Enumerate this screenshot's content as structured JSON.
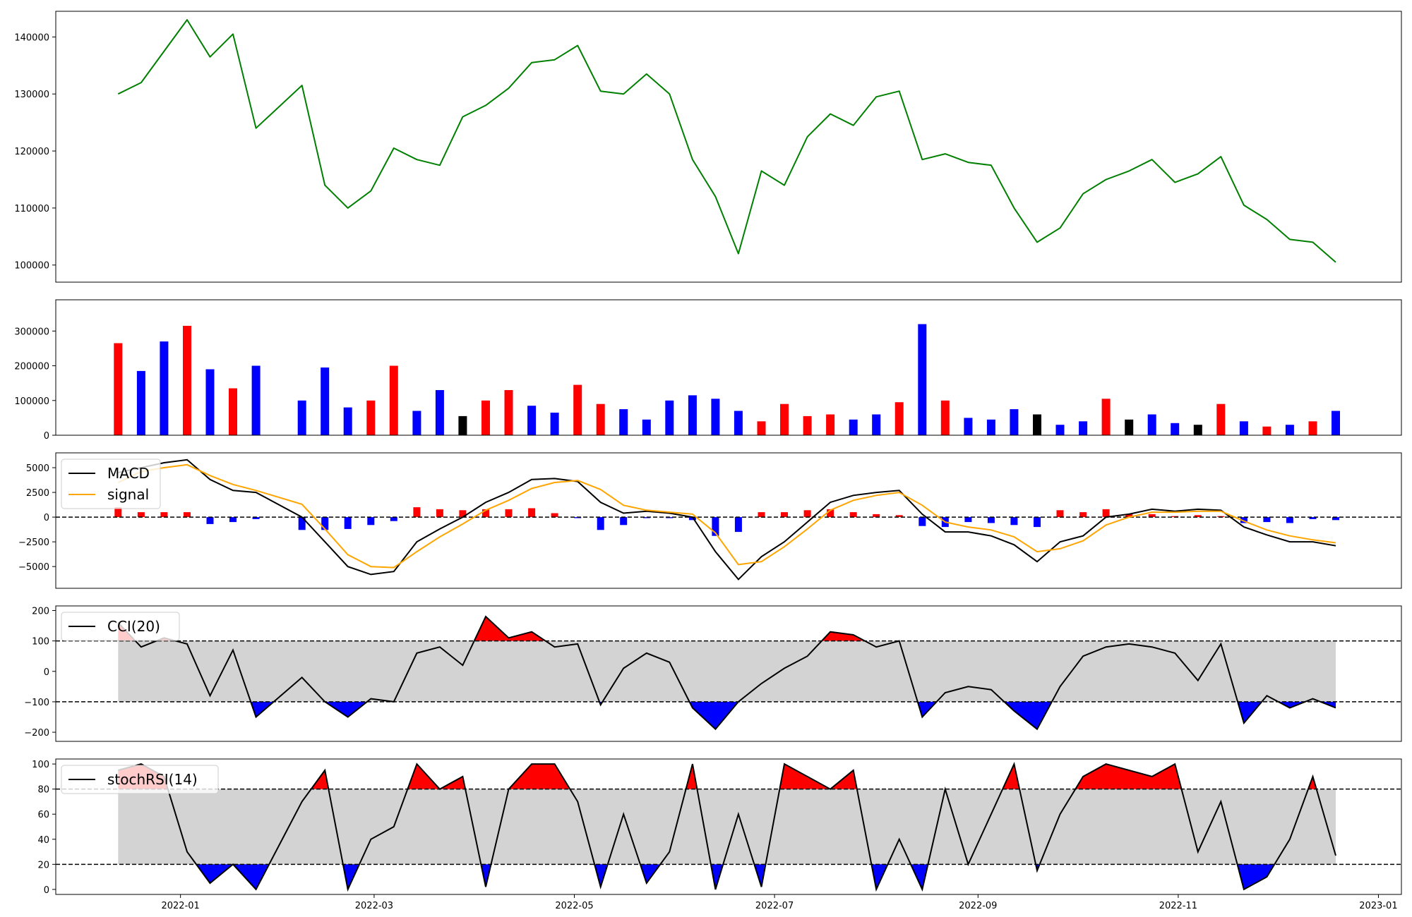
{
  "colors": {
    "price": "#008000",
    "up": "#ff0000",
    "down": "#0000ff",
    "flat": "#000000",
    "macd": "#000000",
    "signal": "#ffa500",
    "band": "#d3d3d3",
    "over": "#ff0000",
    "under": "#0000ff"
  },
  "chart_data": [
    {
      "type": "line",
      "panel": "price",
      "ylim": [
        97000,
        144500
      ],
      "yticks": [
        100000,
        110000,
        120000,
        130000,
        140000
      ],
      "ytick_labels": [
        "100000",
        "110000",
        "120000",
        "130000",
        "140000"
      ],
      "x": [
        "2021-12-13",
        "2021-12-20",
        "2021-12-27",
        "2022-01-03",
        "2022-01-10",
        "2022-01-17",
        "2022-01-24",
        "2022-02-07",
        "2022-02-14",
        "2022-02-21",
        "2022-02-28",
        "2022-03-07",
        "2022-03-14",
        "2022-03-21",
        "2022-03-28",
        "2022-04-04",
        "2022-04-11",
        "2022-04-18",
        "2022-04-25",
        "2022-05-02",
        "2022-05-09",
        "2022-05-16",
        "2022-05-23",
        "2022-05-30",
        "2022-06-06",
        "2022-06-13",
        "2022-06-20",
        "2022-06-27",
        "2022-07-04",
        "2022-07-11",
        "2022-07-18",
        "2022-07-25",
        "2022-08-01",
        "2022-08-08",
        "2022-08-15",
        "2022-08-22",
        "2022-08-29",
        "2022-09-05",
        "2022-09-12",
        "2022-09-19",
        "2022-09-26",
        "2022-10-03",
        "2022-10-10",
        "2022-10-17",
        "2022-10-24",
        "2022-10-31",
        "2022-11-07",
        "2022-11-14",
        "2022-11-21",
        "2022-11-28",
        "2022-12-05",
        "2022-12-12",
        "2022-12-19"
      ],
      "series": [
        {
          "values": [
            130000,
            132000,
            137500,
            143000,
            136500,
            140500,
            124000,
            131500,
            114000,
            110000,
            113000,
            120500,
            118500,
            117500,
            126000,
            128000,
            131000,
            135500,
            136000,
            138500,
            130500,
            130000,
            133500,
            130000,
            118500,
            112000,
            102000,
            116500,
            114000,
            122500,
            126500,
            124500,
            129500,
            130500,
            118500,
            119500,
            118000,
            117500,
            110000,
            104000,
            106500,
            112500,
            115000,
            116500,
            118500,
            114500,
            116000,
            119000,
            110500,
            108000,
            104500,
            104000,
            100500
          ]
        }
      ]
    },
    {
      "type": "bar",
      "panel": "volume",
      "ylim": [
        0,
        390000
      ],
      "yticks": [
        0,
        100000,
        200000,
        300000
      ],
      "ytick_labels": [
        "0",
        "100000",
        "200000",
        "300000"
      ],
      "x": [
        "2021-12-13",
        "2021-12-20",
        "2021-12-27",
        "2022-01-03",
        "2022-01-10",
        "2022-01-17",
        "2022-01-24",
        "2022-02-07",
        "2022-02-14",
        "2022-02-21",
        "2022-02-28",
        "2022-03-07",
        "2022-03-14",
        "2022-03-21",
        "2022-03-28",
        "2022-04-04",
        "2022-04-11",
        "2022-04-18",
        "2022-04-25",
        "2022-05-02",
        "2022-05-09",
        "2022-05-16",
        "2022-05-23",
        "2022-05-30",
        "2022-06-06",
        "2022-06-13",
        "2022-06-20",
        "2022-06-27",
        "2022-07-04",
        "2022-07-11",
        "2022-07-18",
        "2022-07-25",
        "2022-08-01",
        "2022-08-08",
        "2022-08-15",
        "2022-08-22",
        "2022-08-29",
        "2022-09-05",
        "2022-09-12",
        "2022-09-19",
        "2022-09-26",
        "2022-10-03",
        "2022-10-10",
        "2022-10-17",
        "2022-10-24",
        "2022-10-31",
        "2022-11-07",
        "2022-11-14",
        "2022-11-21",
        "2022-11-28",
        "2022-12-05",
        "2022-12-12",
        "2022-12-19"
      ],
      "values": [
        265000,
        185000,
        270000,
        315000,
        190000,
        135000,
        200000,
        100000,
        195000,
        80000,
        100000,
        200000,
        70000,
        130000,
        55000,
        100000,
        130000,
        85000,
        65000,
        145000,
        90000,
        75000,
        45000,
        100000,
        115000,
        105000,
        70000,
        40000,
        90000,
        55000,
        60000,
        45000,
        60000,
        95000,
        320000,
        100000,
        50000,
        45000,
        75000,
        60000,
        30000,
        40000,
        105000,
        45000,
        60000,
        35000,
        30000,
        90000,
        40000,
        25000,
        30000,
        40000,
        70000
      ],
      "direction": [
        "up",
        "down",
        "down",
        "up",
        "down",
        "up",
        "down",
        "down",
        "down",
        "down",
        "up",
        "up",
        "down",
        "down",
        "flat",
        "up",
        "up",
        "down",
        "down",
        "up",
        "up",
        "down",
        "down",
        "down",
        "down",
        "down",
        "down",
        "up",
        "up",
        "up",
        "up",
        "down",
        "down",
        "up",
        "down",
        "up",
        "down",
        "down",
        "down",
        "flat",
        "down",
        "down",
        "up",
        "flat",
        "down",
        "down",
        "flat",
        "up",
        "down",
        "up",
        "down",
        "up",
        "down"
      ]
    },
    {
      "type": "line",
      "panel": "macd",
      "ylim": [
        -7200,
        6500
      ],
      "yticks": [
        -5000,
        -2500,
        0,
        2500,
        5000
      ],
      "ytick_labels": [
        "−5000",
        "−2500",
        "0",
        "2500",
        "5000"
      ],
      "x": [
        "2021-12-13",
        "2021-12-20",
        "2021-12-27",
        "2022-01-03",
        "2022-01-10",
        "2022-01-17",
        "2022-01-24",
        "2022-02-07",
        "2022-02-14",
        "2022-02-21",
        "2022-02-28",
        "2022-03-07",
        "2022-03-14",
        "2022-03-21",
        "2022-03-28",
        "2022-04-04",
        "2022-04-11",
        "2022-04-18",
        "2022-04-25",
        "2022-05-02",
        "2022-05-09",
        "2022-05-16",
        "2022-05-23",
        "2022-05-30",
        "2022-06-06",
        "2022-06-13",
        "2022-06-20",
        "2022-06-27",
        "2022-07-04",
        "2022-07-11",
        "2022-07-18",
        "2022-07-25",
        "2022-08-01",
        "2022-08-08",
        "2022-08-15",
        "2022-08-22",
        "2022-08-29",
        "2022-09-05",
        "2022-09-12",
        "2022-09-19",
        "2022-09-26",
        "2022-10-03",
        "2022-10-10",
        "2022-10-17",
        "2022-10-24",
        "2022-10-31",
        "2022-11-07",
        "2022-11-14",
        "2022-11-21",
        "2022-11-28",
        "2022-12-05",
        "2022-12-12",
        "2022-12-19"
      ],
      "series": [
        {
          "name": "MACD",
          "values": [
            4500,
            5000,
            5500,
            5800,
            3800,
            2700,
            2500,
            0,
            -2500,
            -5000,
            -5800,
            -5500,
            -2500,
            -1200,
            0,
            1500,
            2500,
            3800,
            3900,
            3600,
            1500,
            400,
            600,
            400,
            0,
            -3500,
            -6300,
            -4000,
            -2500,
            -500,
            1500,
            2200,
            2500,
            2700,
            300,
            -1500,
            -1500,
            -1900,
            -2800,
            -4500,
            -2500,
            -1900,
            0,
            300,
            800,
            600,
            800,
            700,
            -1000,
            -1800,
            -2500,
            -2500,
            -2900
          ]
        },
        {
          "name": "signal",
          "values": [
            3500,
            4600,
            5000,
            5300,
            4200,
            3300,
            2700,
            1300,
            -1200,
            -3800,
            -5000,
            -5100,
            -3500,
            -2000,
            -700,
            700,
            1700,
            2900,
            3500,
            3700,
            2800,
            1200,
            700,
            500,
            300,
            -1600,
            -4800,
            -4500,
            -3000,
            -1200,
            700,
            1700,
            2200,
            2500,
            1200,
            -500,
            -1000,
            -1300,
            -2000,
            -3500,
            -3200,
            -2400,
            -800,
            0,
            500,
            500,
            600,
            600,
            -400,
            -1300,
            -1900,
            -2300,
            -2600
          ]
        }
      ],
      "histogram": [
        1000,
        500,
        500,
        500,
        -700,
        -500,
        -200,
        -1300,
        -1300,
        -1200,
        -800,
        -400,
        1000,
        800,
        700,
        800,
        800,
        900,
        400,
        -100,
        -1300,
        -800,
        -100,
        -100,
        -300,
        -1900,
        -1500,
        500,
        500,
        700,
        800,
        500,
        300,
        200,
        -900,
        -1000,
        -500,
        -600,
        -800,
        -1000,
        700,
        500,
        800,
        300,
        300,
        100,
        200,
        100,
        -600,
        -500,
        -600,
        -200,
        -300
      ]
    },
    {
      "type": "line",
      "panel": "cci",
      "ylim": [
        -230,
        215
      ],
      "yticks": [
        -200,
        -100,
        0,
        100,
        200
      ],
      "ytick_labels": [
        "−200",
        "−100",
        "0",
        "100",
        "200"
      ],
      "upper": 100,
      "lower": -100,
      "x": [
        "2021-12-13",
        "2021-12-20",
        "2021-12-27",
        "2022-01-03",
        "2022-01-10",
        "2022-01-17",
        "2022-01-24",
        "2022-02-07",
        "2022-02-14",
        "2022-02-21",
        "2022-02-28",
        "2022-03-07",
        "2022-03-14",
        "2022-03-21",
        "2022-03-28",
        "2022-04-04",
        "2022-04-11",
        "2022-04-18",
        "2022-04-25",
        "2022-05-02",
        "2022-05-09",
        "2022-05-16",
        "2022-05-23",
        "2022-05-30",
        "2022-06-06",
        "2022-06-13",
        "2022-06-20",
        "2022-06-27",
        "2022-07-04",
        "2022-07-11",
        "2022-07-18",
        "2022-07-25",
        "2022-08-01",
        "2022-08-08",
        "2022-08-15",
        "2022-08-22",
        "2022-08-29",
        "2022-09-05",
        "2022-09-12",
        "2022-09-19",
        "2022-09-26",
        "2022-10-03",
        "2022-10-10",
        "2022-10-17",
        "2022-10-24",
        "2022-10-31",
        "2022-11-07",
        "2022-11-14",
        "2022-11-21",
        "2022-11-28",
        "2022-12-05",
        "2022-12-12",
        "2022-12-19"
      ],
      "series": [
        {
          "name": "CCI(20)",
          "values": [
            160,
            80,
            110,
            90,
            -80,
            70,
            -150,
            -20,
            -100,
            -150,
            -90,
            -100,
            60,
            80,
            20,
            180,
            110,
            130,
            80,
            90,
            -110,
            10,
            60,
            30,
            -120,
            -190,
            -100,
            -40,
            10,
            50,
            130,
            120,
            80,
            100,
            -150,
            -70,
            -50,
            -60,
            -130,
            -190,
            -50,
            50,
            80,
            90,
            80,
            60,
            -30,
            90,
            -170,
            -80,
            -120,
            -90,
            -120
          ]
        }
      ]
    },
    {
      "type": "line",
      "panel": "stochrsi",
      "ylim": [
        -4,
        104
      ],
      "yticks": [
        0,
        20,
        40,
        60,
        80,
        100
      ],
      "ytick_labels": [
        "0",
        "20",
        "40",
        "60",
        "80",
        "100"
      ],
      "upper": 80,
      "lower": 20,
      "x": [
        "2021-12-13",
        "2021-12-20",
        "2021-12-27",
        "2022-01-03",
        "2022-01-10",
        "2022-01-17",
        "2022-01-24",
        "2022-02-07",
        "2022-02-14",
        "2022-02-21",
        "2022-02-28",
        "2022-03-07",
        "2022-03-14",
        "2022-03-21",
        "2022-03-28",
        "2022-04-04",
        "2022-04-11",
        "2022-04-18",
        "2022-04-25",
        "2022-05-02",
        "2022-05-09",
        "2022-05-16",
        "2022-05-23",
        "2022-05-30",
        "2022-06-06",
        "2022-06-13",
        "2022-06-20",
        "2022-06-27",
        "2022-07-04",
        "2022-07-11",
        "2022-07-18",
        "2022-07-25",
        "2022-08-01",
        "2022-08-08",
        "2022-08-15",
        "2022-08-22",
        "2022-08-29",
        "2022-09-05",
        "2022-09-12",
        "2022-09-19",
        "2022-09-26",
        "2022-10-03",
        "2022-10-10",
        "2022-10-17",
        "2022-10-24",
        "2022-10-31",
        "2022-11-07",
        "2022-11-14",
        "2022-11-21",
        "2022-11-28",
        "2022-12-05",
        "2022-12-12",
        "2022-12-19"
      ],
      "series": [
        {
          "name": "stochRSI(14)",
          "values": [
            95,
            100,
            90,
            30,
            5,
            20,
            0,
            70,
            95,
            0,
            40,
            50,
            100,
            80,
            90,
            2,
            80,
            100,
            100,
            70,
            2,
            60,
            5,
            30,
            100,
            0,
            60,
            2,
            100,
            90,
            80,
            95,
            0,
            40,
            0,
            80,
            20,
            60,
            100,
            15,
            60,
            90,
            100,
            95,
            90,
            100,
            30,
            70,
            0,
            10,
            40,
            90,
            27
          ]
        }
      ]
    }
  ],
  "x_axis": {
    "ticks": [
      "2022-01-01",
      "2022-03-01",
      "2022-05-01",
      "2022-07-01",
      "2022-09-01",
      "2022-11-01",
      "2023-01-01"
    ],
    "tick_labels": [
      "2022-01",
      "2022-03",
      "2022-05",
      "2022-07",
      "2022-09",
      "2022-11",
      "2023-01"
    ],
    "range": [
      "2021-11-24",
      "2023-01-08"
    ]
  }
}
